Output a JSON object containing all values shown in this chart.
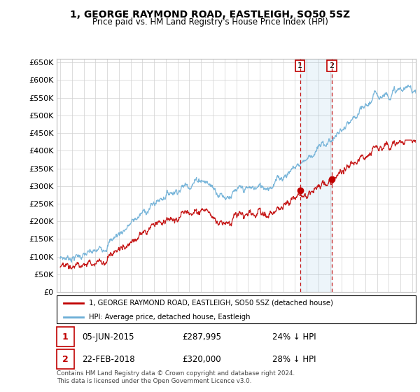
{
  "title": "1, GEORGE RAYMOND ROAD, EASTLEIGH, SO50 5SZ",
  "subtitle": "Price paid vs. HM Land Registry's House Price Index (HPI)",
  "hpi_label": "HPI: Average price, detached house, Eastleigh",
  "property_label": "1, GEORGE RAYMOND ROAD, EASTLEIGH, SO50 5SZ (detached house)",
  "footer": "Contains HM Land Registry data © Crown copyright and database right 2024.\nThis data is licensed under the Open Government Licence v3.0.",
  "sale1_date": "05-JUN-2015",
  "sale1_price": "£287,995",
  "sale1_hpi": "24% ↓ HPI",
  "sale2_date": "22-FEB-2018",
  "sale2_price": "£320,000",
  "sale2_hpi": "28% ↓ HPI",
  "hpi_color": "#6baed6",
  "property_color": "#c00000",
  "background_color": "#ffffff",
  "grid_color": "#d0d0d0",
  "ylim": [
    0,
    660000
  ],
  "yticks": [
    0,
    50000,
    100000,
    150000,
    200000,
    250000,
    300000,
    350000,
    400000,
    450000,
    500000,
    550000,
    600000,
    650000
  ],
  "xlim_start": 1994.7,
  "xlim_end": 2025.3,
  "sale1_x": 2015.43,
  "sale1_y": 287995,
  "sale2_x": 2018.13,
  "sale2_y": 320000,
  "vline1_x": 2015.43,
  "vline2_x": 2018.13
}
